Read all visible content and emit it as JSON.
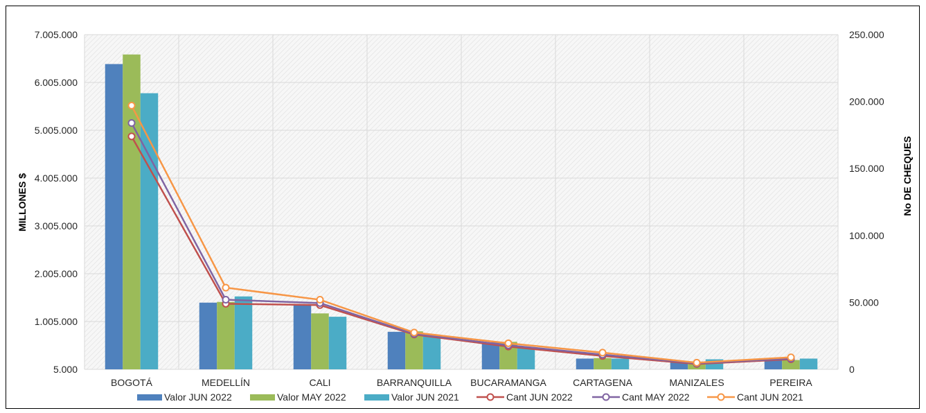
{
  "chart_data": {
    "type": "bar",
    "categories": [
      "BOGOTÁ",
      "MEDELLÍN",
      "CALI",
      "BARRANQUILLA",
      "BUCARAMANGA",
      "CARTAGENA",
      "MANIZALES",
      "PEREIRA"
    ],
    "ylabel": "MILLONES $",
    "y2label": "No DE CHEQUES",
    "ylim": [
      5000,
      7005000
    ],
    "y_ticks": [
      "5.000",
      "1.005.000",
      "2.005.000",
      "3.005.000",
      "4.005.000",
      "5.005.000",
      "6.005.000",
      "7.005.000"
    ],
    "y2lim": [
      0,
      250000
    ],
    "y2_ticks": [
      "0",
      "50.000",
      "100.000",
      "150.000",
      "200.000",
      "250.000"
    ],
    "grid": true,
    "legend_position": "bottom",
    "bar_series": [
      {
        "name": "Valor JUN 2022",
        "color": "#4f81bd",
        "values": [
          6390000,
          1400000,
          1370000,
          790000,
          570000,
          230000,
          150000,
          220000
        ]
      },
      {
        "name": "Valor MAY 2022",
        "color": "#9bbb59",
        "values": [
          6590000,
          1415000,
          1175000,
          800000,
          580000,
          240000,
          160000,
          200000
        ]
      },
      {
        "name": "Valor JUN 2021",
        "color": "#4bacc6",
        "values": [
          5780000,
          1530000,
          1105000,
          730000,
          470000,
          230000,
          215000,
          230000
        ]
      }
    ],
    "line_series": [
      {
        "name": "Cant JUN 2022",
        "color": "#c0504d",
        "values": [
          174000,
          49000,
          48000,
          26000,
          17000,
          10000,
          4000,
          7500
        ]
      },
      {
        "name": "Cant MAY 2022",
        "color": "#8064a2",
        "values": [
          184000,
          52000,
          49500,
          26500,
          18000,
          11000,
          4500,
          8000
        ]
      },
      {
        "name": "Cant JUN 2021",
        "color": "#f79646",
        "values": [
          197000,
          61000,
          52000,
          27500,
          19500,
          12500,
          5000,
          9000
        ]
      }
    ]
  }
}
